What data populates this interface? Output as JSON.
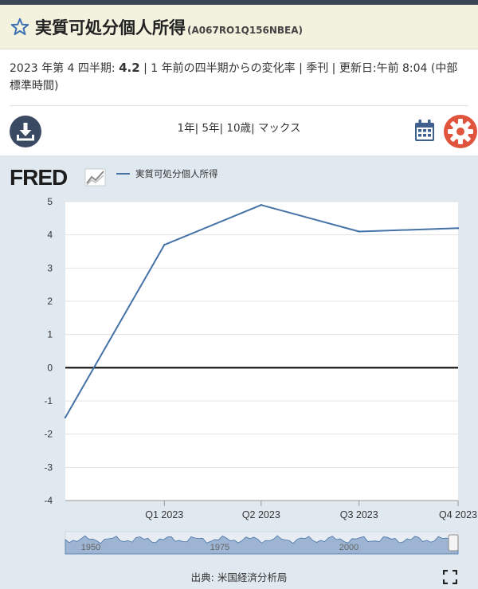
{
  "header": {
    "title": "実質可処分個人所得",
    "series_id": "(A067RO1Q156NBEA)"
  },
  "meta": {
    "period": "2023 年第 4 四半期:",
    "value": "4.2",
    "details": "| 1 年前の四半期からの変化率 | 季刊 | 更新日:午前 8:04 (中部標準時間)"
  },
  "toolbar": {
    "ranges": [
      "1年",
      "5年",
      "10歳",
      "マックス"
    ]
  },
  "legend": {
    "label": "実質可処分個人所得"
  },
  "source": "出典: 米国経済分析局",
  "colors": {
    "series": "#4572a7",
    "panel": "#e1e9f0",
    "download": "#3a4a63",
    "calendar": "#3f5f8f",
    "gear": "#e0543d"
  },
  "chart_data": {
    "type": "line",
    "title": "",
    "xlabel": "",
    "ylabel": "",
    "x": [
      "2022-10-01",
      "2023-01-01",
      "2023-04-01",
      "2023-07-01",
      "2023-10-01"
    ],
    "series": [
      {
        "name": "実質可処分個人所得",
        "values": [
          -1.5,
          3.7,
          4.9,
          4.1,
          4.2
        ]
      }
    ],
    "x_tick_labels": [
      "Q1 2023",
      "Q2 2023",
      "Q3 2023",
      "Q4 2023"
    ],
    "y_ticks": [
      5,
      4,
      3,
      2,
      1,
      0,
      -1,
      -2,
      -3,
      -4
    ],
    "ylim": [
      -4,
      5
    ],
    "zero_line": true,
    "grid": true,
    "legend_position": "top-left",
    "navigator": {
      "labels": [
        "1950",
        "1975",
        "2000"
      ]
    }
  }
}
